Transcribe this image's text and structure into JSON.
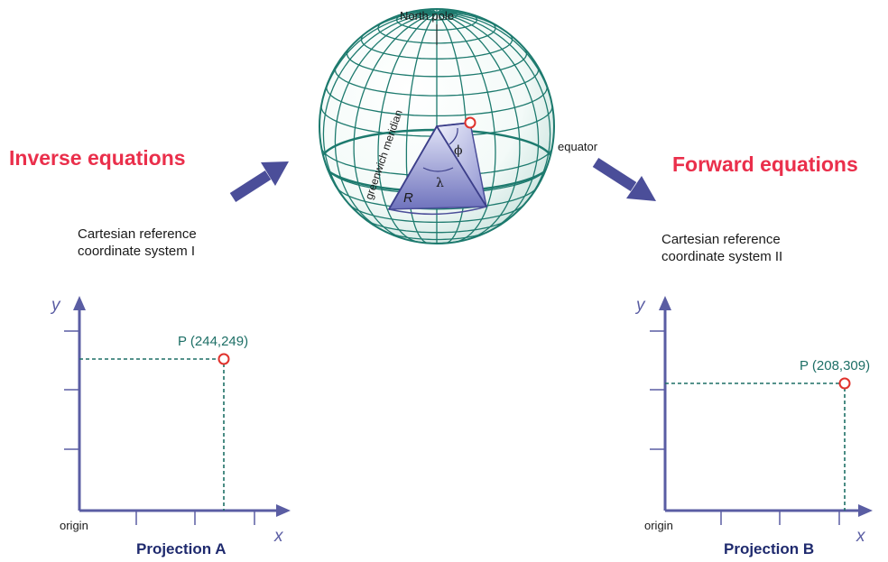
{
  "headings": {
    "inverse": "Inverse equations",
    "forward": "Forward equations"
  },
  "globe": {
    "north_pole": "North pole",
    "equator": "equator",
    "meridian": "greenwich meridian",
    "radius": "R",
    "longitude_symbol": "λ",
    "latitude_symbol": "ϕ"
  },
  "system_left": {
    "line1": "Cartesian reference",
    "line2": "coordinate system I"
  },
  "system_right": {
    "line1": "Cartesian reference",
    "line2": "coordinate system II"
  },
  "projection_a": {
    "title": "Projection A",
    "y_label": "y",
    "x_label": "x",
    "origin_label": "origin",
    "point_label": "P (244,249)"
  },
  "projection_b": {
    "title": "Projection B",
    "y_label": "y",
    "x_label": "x",
    "origin_label": "origin",
    "point_label": "P (208,309)"
  },
  "colors": {
    "heading": "#ea2f4b",
    "axis": "#5a5da3",
    "grid_line": "#1d7a6e",
    "point_marker": "#e0322c",
    "arrow": "#4b4e99",
    "title": "#1f2a6e"
  }
}
